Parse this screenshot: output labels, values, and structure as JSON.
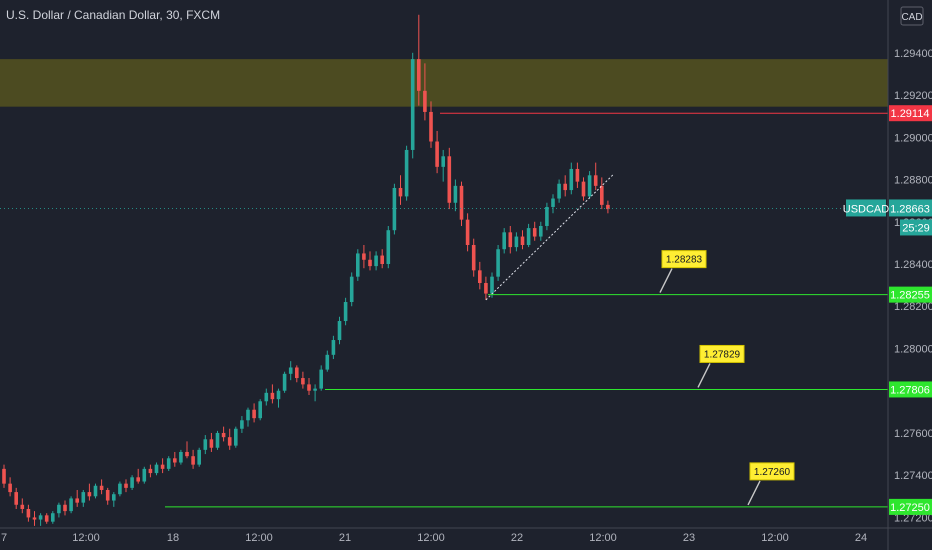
{
  "header": {
    "title": "U.S. Dollar / Canadian Dollar, 30, FXCM",
    "currency": "CAD"
  },
  "colors": {
    "background": "#1e222d",
    "up": "#26a69a",
    "down": "#ef5350",
    "zone": "#5c5a1e",
    "support": "#2ee62e",
    "resistance": "#f23645",
    "note_bg": "#ffee33",
    "price_tag": "#26a69a"
  },
  "chart_data": {
    "type": "candlestick",
    "symbol": "USDCAD",
    "ylim": [
      1.2715,
      1.2965
    ],
    "y_ticks": [
      1.294,
      1.292,
      1.29,
      1.288,
      1.286,
      1.284,
      1.282,
      1.28,
      1.278,
      1.276,
      1.274,
      1.272
    ],
    "y_tick_labels": [
      "1.29400",
      "1.29200",
      "1.29000",
      "1.28800",
      "1.28600",
      "1.28400",
      "1.28200",
      "1.28000",
      "1.27800",
      "1.27600",
      "1.27400",
      "1.27200"
    ],
    "x_tick_labels": [
      "7",
      "12:00",
      "18",
      "12:00",
      "21",
      "12:00",
      "22",
      "12:00",
      "23",
      "12:00",
      "24"
    ],
    "supply_zone": [
      1.29145,
      1.2937
    ],
    "current_price": "1.28663",
    "countdown": "25:29",
    "resistance": {
      "price": 1.29114,
      "label": "1.29114"
    },
    "supports": [
      {
        "price": 1.28255,
        "label": "1.28255",
        "note": "1.28283"
      },
      {
        "price": 1.27806,
        "label": "1.27806",
        "note": "1.27829"
      },
      {
        "price": 1.2725,
        "label": "1.27250",
        "note": "1.27260"
      }
    ],
    "ohlc": [
      [
        1.2743,
        1.2745,
        1.2734,
        1.2736
      ],
      [
        1.2736,
        1.2739,
        1.273,
        1.2732
      ],
      [
        1.2732,
        1.2734,
        1.2724,
        1.2726
      ],
      [
        1.2726,
        1.2729,
        1.2722,
        1.2724
      ],
      [
        1.2724,
        1.2726,
        1.2718,
        1.272
      ],
      [
        1.272,
        1.2723,
        1.2716,
        1.2719
      ],
      [
        1.2719,
        1.2722,
        1.2716,
        1.2721
      ],
      [
        1.2721,
        1.2722,
        1.2717,
        1.2718
      ],
      [
        1.2718,
        1.2723,
        1.2717,
        1.2722
      ],
      [
        1.2722,
        1.2727,
        1.272,
        1.2726
      ],
      [
        1.2726,
        1.2728,
        1.2721,
        1.2723
      ],
      [
        1.2723,
        1.273,
        1.2722,
        1.2729
      ],
      [
        1.2729,
        1.2733,
        1.2725,
        1.2727
      ],
      [
        1.2727,
        1.2733,
        1.2725,
        1.2732
      ],
      [
        1.2732,
        1.2736,
        1.2728,
        1.273
      ],
      [
        1.273,
        1.2736,
        1.2729,
        1.2735
      ],
      [
        1.2735,
        1.2738,
        1.2731,
        1.2733
      ],
      [
        1.2733,
        1.2734,
        1.2726,
        1.2728
      ],
      [
        1.2728,
        1.2732,
        1.2725,
        1.2731
      ],
      [
        1.2731,
        1.2737,
        1.273,
        1.2736
      ],
      [
        1.2736,
        1.2738,
        1.2732,
        1.2734
      ],
      [
        1.2734,
        1.274,
        1.2733,
        1.2739
      ],
      [
        1.2739,
        1.2743,
        1.2736,
        1.2737
      ],
      [
        1.2737,
        1.2744,
        1.2736,
        1.2743
      ],
      [
        1.2743,
        1.2745,
        1.2739,
        1.2741
      ],
      [
        1.2741,
        1.2746,
        1.274,
        1.2745
      ],
      [
        1.2745,
        1.2748,
        1.2741,
        1.2743
      ],
      [
        1.2743,
        1.2749,
        1.2742,
        1.2748
      ],
      [
        1.2748,
        1.2751,
        1.2744,
        1.2746
      ],
      [
        1.2746,
        1.2752,
        1.2745,
        1.2751
      ],
      [
        1.2751,
        1.2756,
        1.2748,
        1.2749
      ],
      [
        1.2749,
        1.2752,
        1.2743,
        1.2745
      ],
      [
        1.2745,
        1.2753,
        1.2744,
        1.2752
      ],
      [
        1.2752,
        1.2759,
        1.275,
        1.2757
      ],
      [
        1.2757,
        1.276,
        1.2751,
        1.2753
      ],
      [
        1.2753,
        1.2761,
        1.2752,
        1.276
      ],
      [
        1.276,
        1.2763,
        1.2756,
        1.2758
      ],
      [
        1.2758,
        1.2762,
        1.2752,
        1.2754
      ],
      [
        1.2754,
        1.2763,
        1.2753,
        1.2762
      ],
      [
        1.2762,
        1.2768,
        1.276,
        1.2766
      ],
      [
        1.2766,
        1.2772,
        1.2763,
        1.2771
      ],
      [
        1.2771,
        1.2774,
        1.2765,
        1.2767
      ],
      [
        1.2767,
        1.2776,
        1.2766,
        1.2775
      ],
      [
        1.2775,
        1.2781,
        1.2773,
        1.2779
      ],
      [
        1.2779,
        1.2783,
        1.2774,
        1.2776
      ],
      [
        1.2776,
        1.2781,
        1.2772,
        1.278
      ],
      [
        1.278,
        1.2789,
        1.2779,
        1.2788
      ],
      [
        1.2788,
        1.2794,
        1.2785,
        1.2791
      ],
      [
        1.2791,
        1.2792,
        1.2784,
        1.2786
      ],
      [
        1.2786,
        1.2789,
        1.2781,
        1.2783
      ],
      [
        1.2783,
        1.2786,
        1.2778,
        1.278
      ],
      [
        1.278,
        1.2783,
        1.2775,
        1.2781
      ],
      [
        1.2781,
        1.2792,
        1.278,
        1.279
      ],
      [
        1.279,
        1.2799,
        1.2789,
        1.2797
      ],
      [
        1.2797,
        1.2806,
        1.2795,
        1.2804
      ],
      [
        1.2804,
        1.2815,
        1.2802,
        1.2813
      ],
      [
        1.2813,
        1.2824,
        1.2811,
        1.2822
      ],
      [
        1.2822,
        1.2836,
        1.282,
        1.2834
      ],
      [
        1.2834,
        1.2847,
        1.2832,
        1.2845
      ],
      [
        1.2845,
        1.2849,
        1.2838,
        1.2842
      ],
      [
        1.2842,
        1.2846,
        1.2837,
        1.2839
      ],
      [
        1.2839,
        1.2846,
        1.2837,
        1.2844
      ],
      [
        1.2844,
        1.2847,
        1.2838,
        1.284
      ],
      [
        1.284,
        1.2858,
        1.2838,
        1.2856
      ],
      [
        1.2856,
        1.2878,
        1.2854,
        1.2876
      ],
      [
        1.2876,
        1.2882,
        1.2868,
        1.2872
      ],
      [
        1.2872,
        1.2896,
        1.287,
        1.2894
      ],
      [
        1.2894,
        1.294,
        1.289,
        1.2937
      ],
      [
        1.2937,
        1.2958,
        1.2915,
        1.2922
      ],
      [
        1.2922,
        1.2935,
        1.2908,
        1.2912
      ],
      [
        1.2912,
        1.2917,
        1.2895,
        1.2898
      ],
      [
        1.2898,
        1.2903,
        1.2883,
        1.2886
      ],
      [
        1.2886,
        1.2894,
        1.2879,
        1.2891
      ],
      [
        1.2891,
        1.2895,
        1.2866,
        1.2869
      ],
      [
        1.2869,
        1.288,
        1.2865,
        1.2877
      ],
      [
        1.2877,
        1.2879,
        1.2858,
        1.2861
      ],
      [
        1.2861,
        1.2864,
        1.2846,
        1.2849
      ],
      [
        1.2849,
        1.2852,
        1.2834,
        1.2837
      ],
      [
        1.2837,
        1.2841,
        1.2828,
        1.2831
      ],
      [
        1.2831,
        1.2834,
        1.2823,
        1.2826
      ],
      [
        1.2826,
        1.2836,
        1.2824,
        1.2834
      ],
      [
        1.2834,
        1.2849,
        1.2832,
        1.2847
      ],
      [
        1.2847,
        1.2857,
        1.2845,
        1.2855
      ],
      [
        1.2855,
        1.2858,
        1.2845,
        1.2848
      ],
      [
        1.2848,
        1.2855,
        1.2846,
        1.2853
      ],
      [
        1.2853,
        1.2856,
        1.2847,
        1.2849
      ],
      [
        1.2849,
        1.2859,
        1.2848,
        1.2857
      ],
      [
        1.2857,
        1.286,
        1.2851,
        1.2853
      ],
      [
        1.2853,
        1.286,
        1.2851,
        1.2858
      ],
      [
        1.2858,
        1.2869,
        1.2856,
        1.2867
      ],
      [
        1.2867,
        1.2873,
        1.2864,
        1.2871
      ],
      [
        1.2871,
        1.288,
        1.2869,
        1.2878
      ],
      [
        1.2878,
        1.2882,
        1.2872,
        1.2875
      ],
      [
        1.2875,
        1.2888,
        1.2873,
        1.2885
      ],
      [
        1.2885,
        1.2888,
        1.2876,
        1.2879
      ],
      [
        1.2879,
        1.2881,
        1.287,
        1.2872
      ],
      [
        1.2872,
        1.2884,
        1.2871,
        1.2882
      ],
      [
        1.2882,
        1.2888,
        1.2875,
        1.2877
      ],
      [
        1.2877,
        1.2881,
        1.2866,
        1.2868
      ],
      [
        1.2868,
        1.287,
        1.2864,
        1.2866
      ]
    ]
  }
}
